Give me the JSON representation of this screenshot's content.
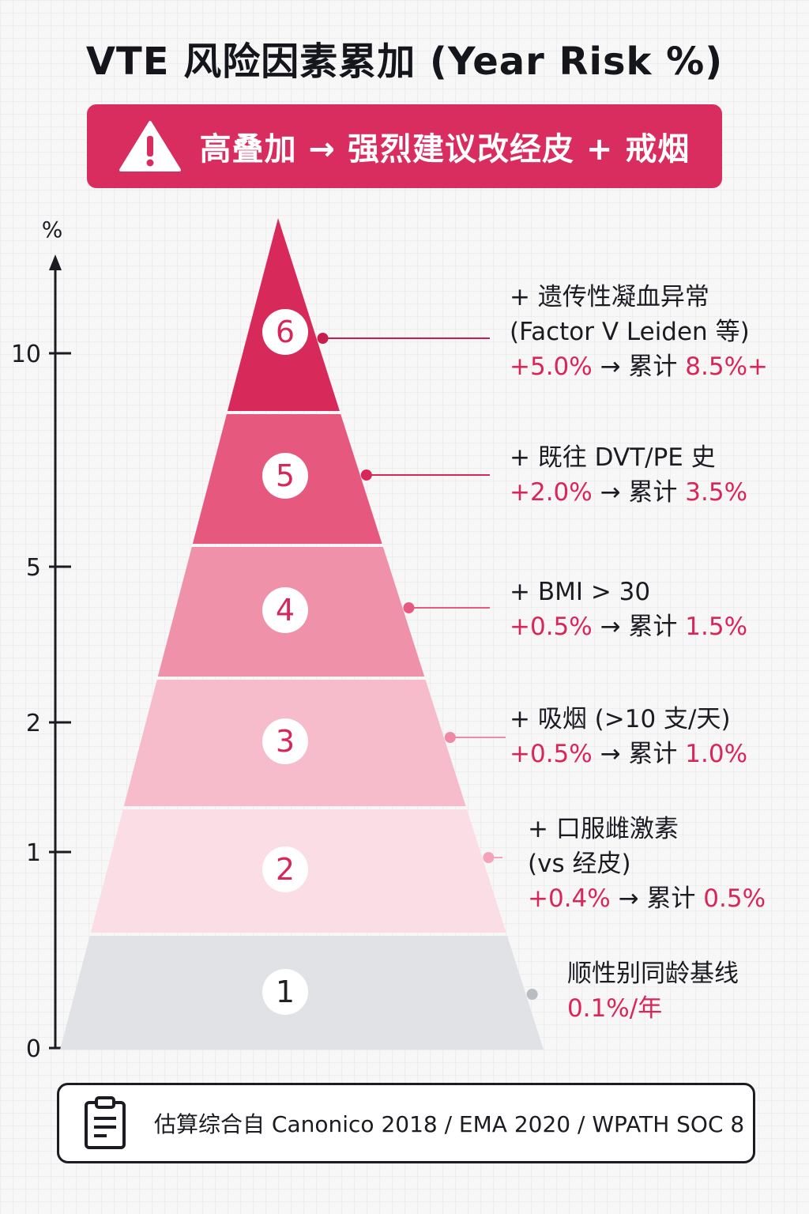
{
  "title": "VTE 风险因素累加 (Year Risk %)",
  "banner": {
    "icon": "warning-triangle-icon",
    "text": "高叠加 → 强烈建议改经皮 + 戒烟",
    "color": "#d92d5f"
  },
  "axis": {
    "unit": "%",
    "ticks": [
      "0",
      "1",
      "2",
      "5",
      "10"
    ]
  },
  "layers": [
    {
      "num": "1",
      "fill": "#e0e2e5",
      "badge_color": "#222",
      "dot": "#b9bcc2",
      "line1": "顺性别同龄基线",
      "line2": "",
      "risk": "0.1%/年",
      "arrow": "",
      "cum_label": "",
      "cum_value": ""
    },
    {
      "num": "2",
      "fill": "#fbdde5",
      "badge_color": "#d9265a",
      "dot": "#f3a4ba",
      "line1": "+ 口服雌激素",
      "line2": "(vs 经皮)",
      "risk": "+0.4%",
      "arrow": " → ",
      "cum_label": "累计 ",
      "cum_value": "0.5%"
    },
    {
      "num": "3",
      "fill": "#f6bccb",
      "badge_color": "#d9265a",
      "dot": "#ef8aa6",
      "line1": "+ 吸烟 (>10 支/天)",
      "line2": "",
      "risk": "+0.5%",
      "arrow": " → ",
      "cum_label": "累计 ",
      "cum_value": "1.0%"
    },
    {
      "num": "4",
      "fill": "#ef91a9",
      "badge_color": "#d9265a",
      "dot": "#e45a80",
      "line1": "+ BMI > 30",
      "line2": "",
      "risk": "+0.5%",
      "arrow": " → ",
      "cum_label": "累计 ",
      "cum_value": "1.5%"
    },
    {
      "num": "5",
      "fill": "#e7587f",
      "badge_color": "#d9265a",
      "dot": "#d9265a",
      "line1": "+ 既往 DVT/PE 史",
      "line2": "",
      "risk": "+2.0%",
      "arrow": " → ",
      "cum_label": "累计 ",
      "cum_value": "3.5%"
    },
    {
      "num": "6",
      "fill": "#d72a5b",
      "badge_color": "#d9265a",
      "dot": "#c81e4f",
      "line1": "+ 遗传性凝血异常",
      "line2": "(Factor V Leiden 等)",
      "risk": "+5.0%",
      "arrow": " → ",
      "cum_label": "累计 ",
      "cum_value": "8.5%+"
    }
  ],
  "footer": {
    "icon": "clipboard-icon",
    "text": "估算综合自 Canonico 2018 / EMA 2020 / WPATH SOC 8"
  }
}
